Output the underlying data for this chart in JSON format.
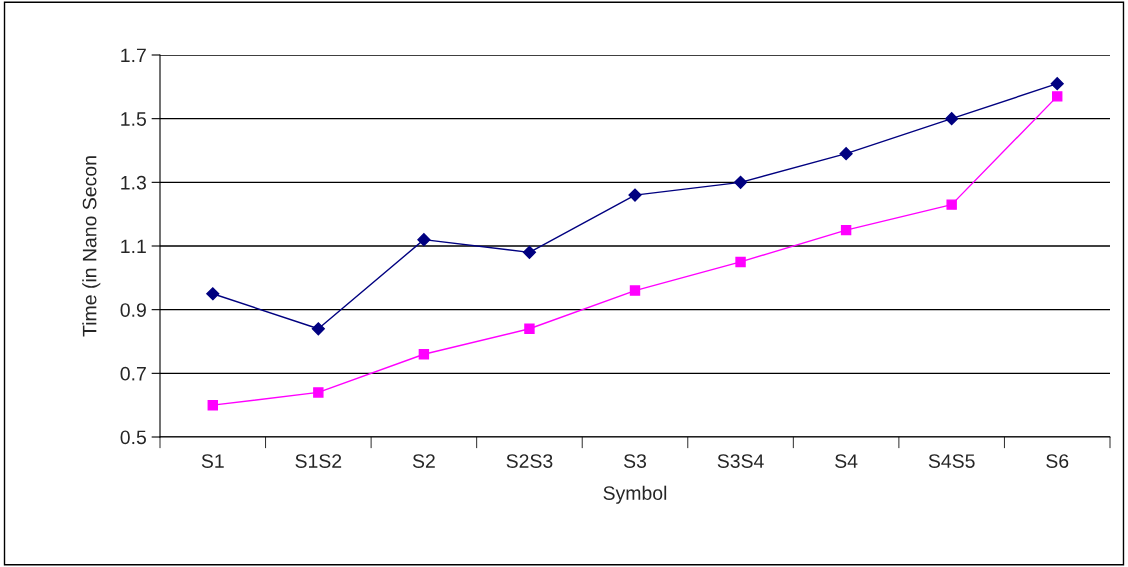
{
  "chart_data": {
    "type": "line",
    "xlabel": "Symbol",
    "ylabel": "Time (in Nano Secon",
    "categories": [
      "S1",
      "S1S2",
      "S2",
      "S2S3",
      "S3",
      "S3S4",
      "S4",
      "S4S5",
      "S6"
    ],
    "series": [
      {
        "color": "#000080",
        "marker": "diamond",
        "values": [
          0.95,
          0.84,
          1.12,
          1.08,
          1.26,
          1.3,
          1.39,
          1.5,
          1.61
        ]
      },
      {
        "color": "#ff00ff",
        "marker": "square",
        "values": [
          0.6,
          0.64,
          0.76,
          0.84,
          0.96,
          1.05,
          1.15,
          1.23,
          1.57
        ]
      }
    ],
    "ylim": [
      0.5,
      1.7
    ],
    "yticks": [
      0.5,
      0.7,
      0.9,
      1.1,
      1.3,
      1.5,
      1.7
    ],
    "grid": "y"
  }
}
